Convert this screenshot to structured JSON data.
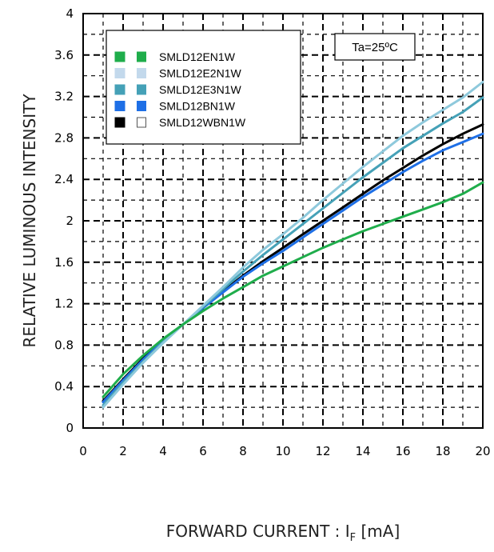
{
  "chart_data": {
    "type": "line",
    "xlabel_main": "FORWARD CURRENT : I",
    "xlabel_sub": "F",
    "xlabel_unit": " [mA]",
    "ylabel": "RELATIVE LUMINOUS INTENSITY",
    "xlim": [
      0,
      20
    ],
    "ylim": [
      0,
      4
    ],
    "x_ticks": [
      "0",
      "2",
      "4",
      "6",
      "8",
      "10",
      "12",
      "14",
      "16",
      "18",
      "20"
    ],
    "y_ticks": [
      "0",
      "0.4",
      "0.8",
      "1.2",
      "1.6",
      "2",
      "2.4",
      "2.8",
      "3.2",
      "3.6",
      "4"
    ],
    "grid": true,
    "legend_position": "top-left",
    "condition": "Ta=25ºC",
    "x": [
      1,
      2,
      3,
      4,
      5,
      6,
      7,
      8,
      9,
      10,
      11,
      12,
      13,
      14,
      15,
      16,
      17,
      18,
      19,
      20
    ],
    "series": [
      {
        "name": "SMLD12EN1W",
        "color": "#1fad4b",
        "marker_color": "#1fad4b",
        "marker_filled": true,
        "values": [
          0.3,
          0.52,
          0.7,
          0.86,
          1.0,
          1.13,
          1.25,
          1.36,
          1.47,
          1.56,
          1.65,
          1.74,
          1.82,
          1.9,
          1.97,
          2.04,
          2.11,
          2.18,
          2.26,
          2.37
        ]
      },
      {
        "name": "SMLD12E2N1W",
        "color": "#8ec9dc",
        "marker_color": "#c3d9ec",
        "marker_filled": true,
        "values": [
          0.2,
          0.42,
          0.63,
          0.82,
          1.0,
          1.18,
          1.36,
          1.55,
          1.72,
          1.87,
          2.03,
          2.2,
          2.36,
          2.52,
          2.67,
          2.82,
          2.95,
          3.07,
          3.19,
          3.34
        ]
      },
      {
        "name": "SMLD12E3N1W",
        "color": "#45a1b7",
        "marker_color": "#45a1b7",
        "marker_filled": true,
        "values": [
          0.22,
          0.44,
          0.64,
          0.83,
          1.0,
          1.17,
          1.34,
          1.51,
          1.67,
          1.82,
          1.97,
          2.12,
          2.27,
          2.42,
          2.56,
          2.7,
          2.82,
          2.94,
          3.05,
          3.19
        ]
      },
      {
        "name": "SMLD12BN1W",
        "color": "#1e6fe6",
        "marker_color": "#1e6fe6",
        "marker_filled": true,
        "values": [
          0.25,
          0.46,
          0.66,
          0.84,
          1.0,
          1.16,
          1.31,
          1.46,
          1.59,
          1.71,
          1.84,
          1.97,
          2.1,
          2.23,
          2.35,
          2.47,
          2.58,
          2.68,
          2.76,
          2.84
        ]
      },
      {
        "name": "SMLD12WBN1W",
        "color": "#000000",
        "marker_color": "#000000",
        "marker_filled": false,
        "values": [
          0.26,
          0.47,
          0.67,
          0.85,
          1.0,
          1.16,
          1.32,
          1.47,
          1.61,
          1.74,
          1.87,
          2.0,
          2.13,
          2.26,
          2.39,
          2.51,
          2.63,
          2.74,
          2.84,
          2.93
        ]
      }
    ]
  }
}
